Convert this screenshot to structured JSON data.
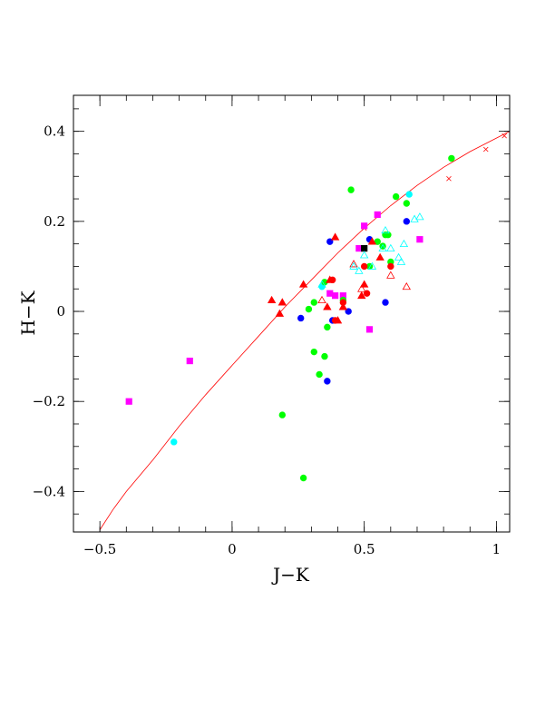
{
  "chart_data": {
    "type": "scatter",
    "title": "",
    "xlabel": "J−K",
    "ylabel": "H−K",
    "xlim": [
      -0.6,
      1.05
    ],
    "ylim": [
      -0.49,
      0.48
    ],
    "grid": false,
    "x_ticks": [
      {
        "value": -0.5,
        "label": "−0.5"
      },
      {
        "value": 0,
        "label": "0"
      },
      {
        "value": 0.5,
        "label": "0.5"
      },
      {
        "value": 1,
        "label": "1"
      }
    ],
    "y_ticks": [
      {
        "value": -0.4,
        "label": "−0.4"
      },
      {
        "value": -0.2,
        "label": "−0.2"
      },
      {
        "value": 0,
        "label": "0"
      },
      {
        "value": 0.2,
        "label": "0.2"
      },
      {
        "value": 0.4,
        "label": "0.4"
      }
    ],
    "x_minor_step": 0.1,
    "y_minor_step": 0.05,
    "reference_curve": {
      "color": "#ff0000",
      "x": [
        -0.5,
        -0.45,
        -0.4,
        -0.3,
        -0.2,
        -0.1,
        0.0,
        0.1,
        0.2,
        0.3,
        0.4,
        0.5,
        0.6,
        0.7,
        0.8,
        0.9,
        1.0,
        1.05
      ],
      "y": [
        -0.485,
        -0.44,
        -0.4,
        -0.33,
        -0.255,
        -0.185,
        -0.12,
        -0.055,
        0.01,
        0.07,
        0.13,
        0.185,
        0.235,
        0.28,
        0.32,
        0.355,
        0.385,
        0.4
      ],
      "markers_x": [
        0.5,
        0.82,
        0.96,
        1.03
      ],
      "markers_y": [
        0.185,
        0.295,
        0.36,
        0.39
      ]
    },
    "series": [
      {
        "marker": "square",
        "fill": true,
        "color": "#ff00ff",
        "x": [
          -0.39,
          -0.16,
          0.37,
          0.39,
          0.42,
          0.48,
          0.5,
          0.52,
          0.55,
          0.71
        ],
        "y": [
          -0.2,
          -0.11,
          0.04,
          0.035,
          0.035,
          0.14,
          0.19,
          -0.04,
          0.215,
          0.16
        ]
      },
      {
        "marker": "square",
        "fill": true,
        "color": "#000000",
        "x": [
          0.5
        ],
        "y": [
          0.14
        ]
      },
      {
        "marker": "circle",
        "fill": true,
        "color": "#00ffff",
        "x": [
          -0.22,
          0.34,
          0.67
        ],
        "y": [
          -0.29,
          0.055,
          0.26
        ]
      },
      {
        "marker": "circle",
        "fill": true,
        "color": "#0000ff",
        "x": [
          0.26,
          0.36,
          0.37,
          0.38,
          0.44,
          0.52,
          0.58,
          0.66
        ],
        "y": [
          -0.015,
          -0.155,
          0.155,
          -0.02,
          0.0,
          0.16,
          0.02,
          0.2
        ]
      },
      {
        "marker": "circle",
        "fill": true,
        "color": "#00ff00",
        "x": [
          0.19,
          0.27,
          0.29,
          0.31,
          0.31,
          0.33,
          0.35,
          0.35,
          0.36,
          0.42,
          0.45,
          0.52,
          0.55,
          0.57,
          0.58,
          0.59,
          0.6,
          0.62,
          0.66,
          0.83
        ],
        "y": [
          -0.23,
          -0.37,
          0.005,
          0.02,
          -0.09,
          -0.14,
          -0.1,
          0.065,
          -0.035,
          0.025,
          0.27,
          0.1,
          0.155,
          0.145,
          0.17,
          0.17,
          0.11,
          0.255,
          0.24,
          0.34
        ]
      },
      {
        "marker": "circle",
        "fill": true,
        "color": "#ff0000",
        "x": [
          0.38,
          0.39,
          0.42,
          0.5,
          0.51,
          0.6
        ],
        "y": [
          0.07,
          -0.02,
          0.02,
          0.1,
          0.04,
          0.1
        ]
      },
      {
        "marker": "triangle",
        "fill": true,
        "color": "#ff0000",
        "x": [
          0.15,
          0.18,
          0.19,
          0.27,
          0.36,
          0.37,
          0.39,
          0.4,
          0.42,
          0.49,
          0.5,
          0.53,
          0.56
        ],
        "y": [
          0.025,
          -0.005,
          0.02,
          0.06,
          0.01,
          0.07,
          0.165,
          -0.02,
          0.01,
          0.035,
          0.06,
          0.155,
          0.12
        ]
      },
      {
        "marker": "triangle",
        "fill": false,
        "color": "#ff0000",
        "x": [
          0.34,
          0.46,
          0.49,
          0.6,
          0.66
        ],
        "y": [
          0.025,
          0.105,
          0.05,
          0.08,
          0.055
        ]
      },
      {
        "marker": "triangle",
        "fill": false,
        "color": "#00ffff",
        "x": [
          0.34,
          0.46,
          0.48,
          0.5,
          0.53,
          0.57,
          0.58,
          0.6,
          0.63,
          0.64,
          0.65,
          0.69,
          0.71
        ],
        "y": [
          0.06,
          0.1,
          0.09,
          0.125,
          0.1,
          0.14,
          0.18,
          0.14,
          0.12,
          0.11,
          0.15,
          0.205,
          0.21
        ]
      }
    ]
  }
}
